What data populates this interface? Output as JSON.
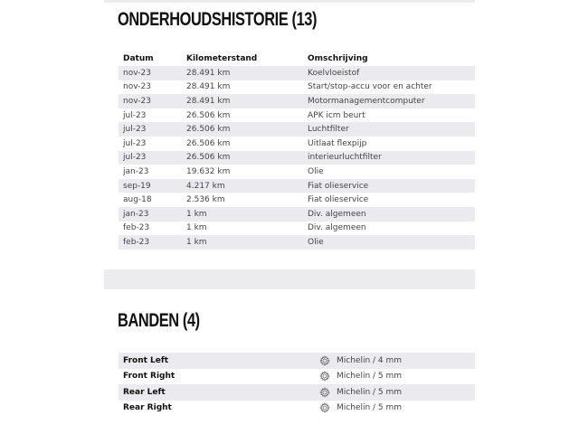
{
  "history": {
    "title": "ONDERHOUDSHISTORIE (13)",
    "columns": [
      "Datum",
      "Kilometerstand",
      "Omschrijving"
    ],
    "rows": [
      [
        "nov-23",
        "28.491 km",
        "Koelvloeistof"
      ],
      [
        "nov-23",
        "28.491 km",
        "Start/stop-accu voor en achter"
      ],
      [
        "nov-23",
        "28.491 km",
        "Motormanagementcomputer"
      ],
      [
        "jul-23",
        "26.506 km",
        "APK icm beurt"
      ],
      [
        "jul-23",
        "26.506 km",
        "Luchtfilter"
      ],
      [
        "jul-23",
        "26.506 km",
        "Uitlaat flexpijp"
      ],
      [
        "jul-23",
        "26.506 km",
        "interieurluchtfilter"
      ],
      [
        "jan-23",
        "19.632 km",
        "Olie"
      ],
      [
        "sep-19",
        "4.217 km",
        "Fiat olieservice"
      ],
      [
        "aug-18",
        "2.536 km",
        "Fiat olieservice"
      ],
      [
        "jan-23",
        "1 km",
        "Div. algemeen"
      ],
      [
        "feb-23",
        "1 km",
        "Div. algemeen"
      ],
      [
        "feb-23",
        "1 km",
        "Olie"
      ]
    ]
  },
  "tires": {
    "title": "BANDEN (4)",
    "icon": "tire-icon",
    "rows": [
      {
        "position": "Front Left",
        "value": "Michelin / 4 mm"
      },
      {
        "position": "Front Right",
        "value": "Michelin / 5 mm"
      },
      {
        "position": "Rear Left",
        "value": "Michelin / 5 mm"
      },
      {
        "position": "Rear Right",
        "value": "Michelin / 5 mm"
      }
    ]
  }
}
